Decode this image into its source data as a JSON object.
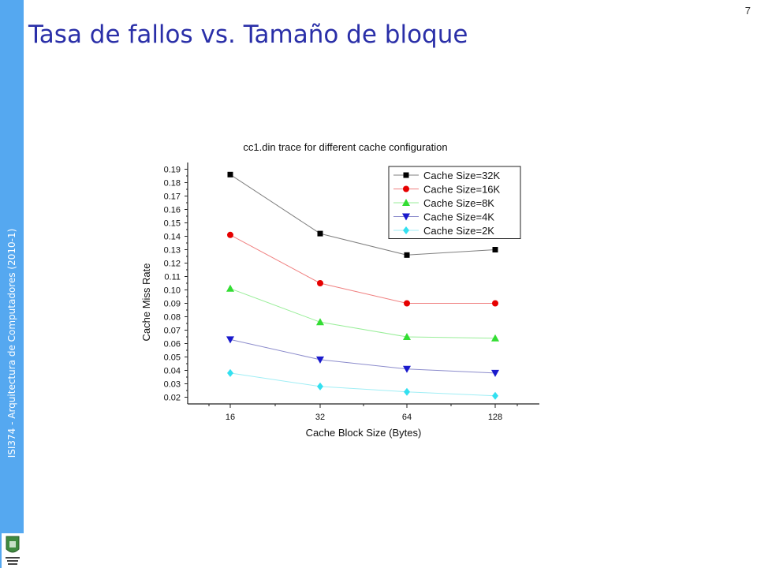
{
  "sidebar": {
    "text": "ISI374 - Arquitectura de Computadores (2010-1)"
  },
  "slide": {
    "title": "Tasa de fallos vs. Tamaño de bloque",
    "page_number": "7"
  },
  "chart_data": {
    "type": "line",
    "title": "cc1.din trace for different cache configuration",
    "xlabel": "Cache Block Size (Bytes)",
    "ylabel": "Cache Miss Rate",
    "categories": [
      "16",
      "32",
      "64",
      "128"
    ],
    "ylim": [
      0.015,
      0.195
    ],
    "yticks": [
      0.02,
      0.03,
      0.04,
      0.05,
      0.06,
      0.07,
      0.08,
      0.09,
      0.1,
      0.11,
      0.12,
      0.13,
      0.14,
      0.15,
      0.16,
      0.17,
      0.18,
      0.19
    ],
    "ytick_labels": [
      "0.02",
      "0.03",
      "0.04",
      "0.05",
      "0.06",
      "0.07",
      "0.08",
      "0.09",
      "0.10",
      "0.11",
      "0.12",
      "0.13",
      "0.14",
      "0.15",
      "0.16",
      "0.17",
      "0.18",
      "0.19"
    ],
    "grid": false,
    "legend_position": "top-right",
    "series": [
      {
        "name": "Cache Size=32K",
        "marker": "square",
        "marker_color": "#000000",
        "line_color": "#7f7f7f",
        "values": [
          0.186,
          0.142,
          0.126,
          0.13
        ]
      },
      {
        "name": "Cache Size=16K",
        "marker": "circle",
        "marker_color": "#e60000",
        "line_color": "#f08080",
        "values": [
          0.141,
          0.105,
          0.09,
          0.09
        ]
      },
      {
        "name": "Cache Size=8K",
        "marker": "triangle-up",
        "marker_color": "#33dd33",
        "line_color": "#99ee99",
        "values": [
          0.101,
          0.076,
          0.065,
          0.064
        ]
      },
      {
        "name": "Cache Size=4K",
        "marker": "triangle-down",
        "marker_color": "#1a1acc",
        "line_color": "#8c8ccc",
        "values": [
          0.063,
          0.048,
          0.041,
          0.038
        ]
      },
      {
        "name": "Cache Size=2K",
        "marker": "diamond",
        "marker_color": "#33e0f0",
        "line_color": "#a0eef5",
        "values": [
          0.038,
          0.028,
          0.024,
          0.021
        ]
      }
    ]
  }
}
